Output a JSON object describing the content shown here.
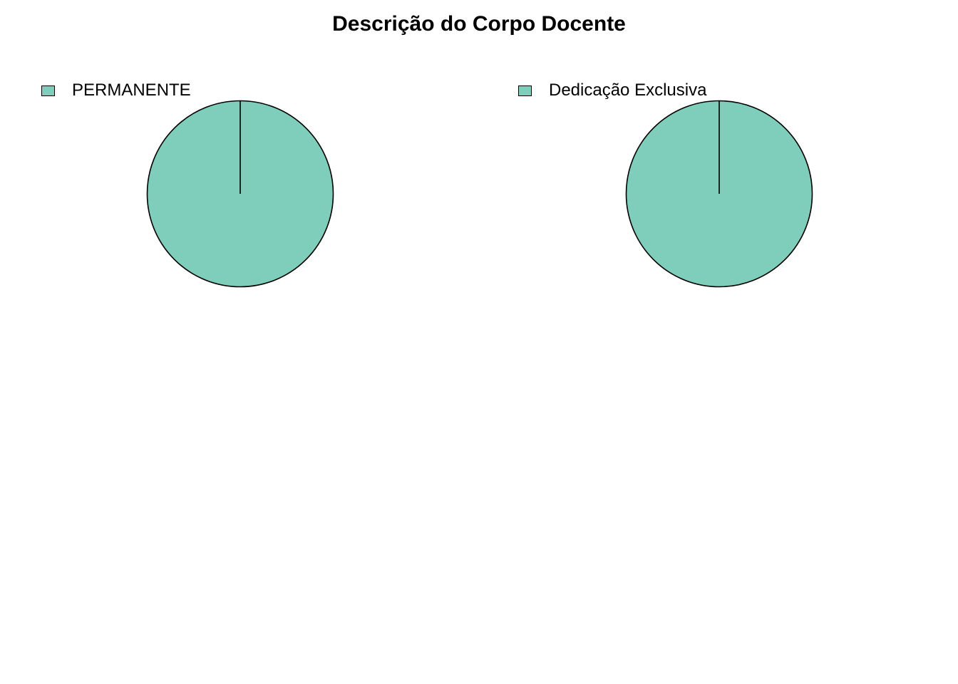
{
  "title": "Descrição do Corpo Docente",
  "chart_data": [
    {
      "type": "pie",
      "title": "",
      "categories": [
        "PERMANENTE"
      ],
      "values": [
        1
      ],
      "colors": [
        "#7fcdbb"
      ],
      "legend": {
        "entries": [
          "PERMANENTE"
        ],
        "position": "top-left"
      }
    },
    {
      "type": "pie",
      "title": "",
      "categories": [
        "Dedicação Exclusiva"
      ],
      "values": [
        1
      ],
      "colors": [
        "#7fcdbb"
      ],
      "legend": {
        "entries": [
          "Dedicação Exclusiva"
        ],
        "position": "top-left"
      }
    }
  ]
}
